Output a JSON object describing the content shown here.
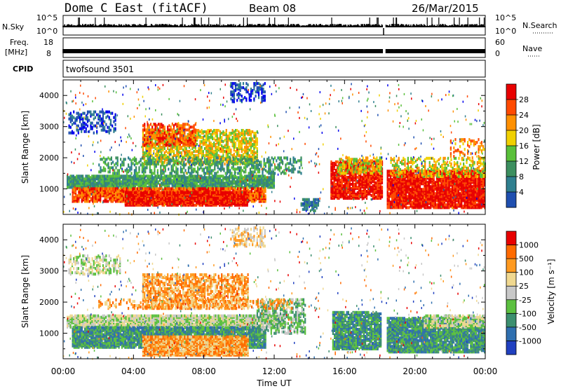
{
  "header": {
    "station": "Dome C East (fitACF)",
    "beam": "Beam 08",
    "date": "26/Mar/2015"
  },
  "top_panels": {
    "nsky_label": "N.Sky",
    "nsky_ticks": [
      "10^5",
      "10^0"
    ],
    "nsearch_label": "N.Search",
    "nsearch_ticks": [
      "10^5",
      "10^0"
    ],
    "freq_label_1": "Freq.",
    "freq_label_2": "[MHz]",
    "freq_ticks": [
      "18",
      "8"
    ],
    "nave_label": "Nave",
    "nave_ticks": [
      "60",
      "0"
    ],
    "cpid_label": "CPID",
    "cpid_value": "twofsound 3501"
  },
  "chart_data": [
    {
      "type": "heatmap",
      "quantity": "Power",
      "ylabel": "Slant Range [km]",
      "colorbar_label": "Power [dB]",
      "colorbar_ticks": [
        "28",
        "24",
        "20",
        "16",
        "12",
        "8",
        "4"
      ],
      "yticks": [
        "4000",
        "3000",
        "2000",
        "1000"
      ],
      "ylim": [
        180,
        4500
      ],
      "xlim_hours": [
        0,
        24
      ],
      "colors": [
        "#0000ee",
        "#1f4fb0",
        "#2f7f8f",
        "#3c8f5f",
        "#59c03a",
        "#f0d000",
        "#ff9000",
        "#ff4a00",
        "#e80000"
      ]
    },
    {
      "type": "heatmap",
      "quantity": "Velocity",
      "ylabel": "Slant Range [km]",
      "colorbar_label": "Velocity [m s⁻¹]",
      "colorbar_ticks": [
        "1000",
        "500",
        "100",
        "25",
        "-25",
        "-100",
        "-500",
        "-1000"
      ],
      "yticks": [
        "4000",
        "3000",
        "2000",
        "1000"
      ],
      "ylim": [
        180,
        4500
      ],
      "xlim_hours": [
        0,
        24
      ],
      "colors": [
        "#2040c0",
        "#2f6faf",
        "#3c8f6f",
        "#5cc040",
        "#c8c8c8",
        "#f0d890",
        "#ff9a20",
        "#ff6a00",
        "#e80000"
      ]
    }
  ],
  "x_axis": {
    "ticks": [
      "00:00",
      "04:00",
      "08:00",
      "12:00",
      "16:00",
      "20:00",
      "00:00"
    ],
    "label": "Time UT"
  }
}
